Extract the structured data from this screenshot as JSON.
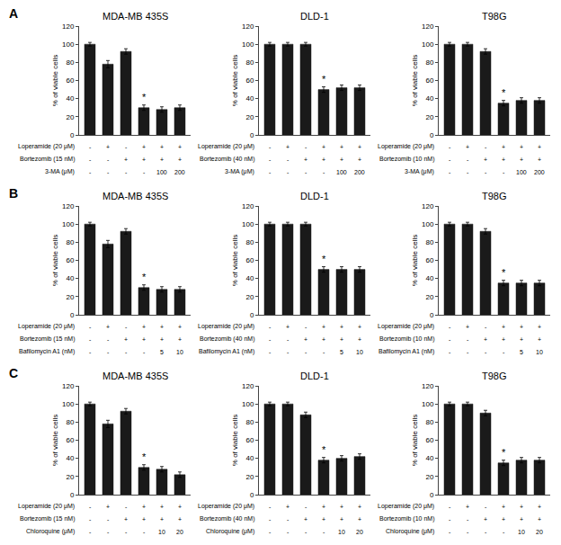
{
  "chart_data": [
    {
      "type": "bar",
      "title": "MDA-MB 435S",
      "ylabel": "% of viable cells",
      "categories": [
        null,
        null,
        null,
        null,
        null,
        null
      ],
      "values": [
        100,
        78,
        92,
        30,
        28,
        30
      ],
      "errors": [
        2,
        4,
        3,
        3,
        3,
        3
      ],
      "color": "#1a1a1a",
      "ylim": [
        0,
        120
      ],
      "yticks": [
        0,
        20,
        40,
        60,
        80,
        100,
        120
      ],
      "grid": false,
      "tick_labels": "y",
      "annotations": [
        {
          "text": "A"
        },
        {
          "text": "*",
          "x": 3
        }
      ],
      "rows": [
        {
          "label": "Loperamide (20 μM)",
          "values": [
            "-",
            "+",
            "-",
            "+",
            "+",
            "+"
          ]
        },
        {
          "label": "Bortezomib (15 nM)",
          "values": [
            "-",
            "-",
            "+",
            "+",
            "+",
            "+"
          ]
        },
        {
          "label": "3-MA (μM)",
          "values": [
            "-",
            "-",
            "-",
            "-",
            "100",
            "200"
          ]
        }
      ]
    },
    {
      "type": "bar",
      "title": "DLD-1",
      "ylabel": "% of viable cells",
      "categories": [
        null,
        null,
        null,
        null,
        null,
        null
      ],
      "values": [
        100,
        100,
        100,
        50,
        52,
        52
      ],
      "errors": [
        2,
        2,
        2,
        3,
        3,
        3
      ],
      "color": "#1a1a1a",
      "ylim": [
        0,
        120
      ],
      "yticks": [
        0,
        20,
        40,
        60,
        80,
        100,
        120
      ],
      "grid": false,
      "tick_labels": "y",
      "annotations": [
        {
          "text": "*",
          "x": 3
        }
      ],
      "rows": [
        {
          "label": "Loperamide (20 μM)",
          "values": [
            "-",
            "+",
            "-",
            "+",
            "+",
            "+"
          ]
        },
        {
          "label": "Bortezomib (40 nM)",
          "values": [
            "-",
            "-",
            "+",
            "+",
            "+",
            "+"
          ]
        },
        {
          "label": "3-MA (μM)",
          "values": [
            "-",
            "-",
            "-",
            "-",
            "100",
            "200"
          ]
        }
      ]
    },
    {
      "type": "bar",
      "title": "T98G",
      "ylabel": "% of viable cells",
      "categories": [
        null,
        null,
        null,
        null,
        null,
        null
      ],
      "values": [
        100,
        100,
        92,
        35,
        38,
        38
      ],
      "errors": [
        2,
        2,
        3,
        3,
        3,
        3
      ],
      "color": "#1a1a1a",
      "ylim": [
        0,
        120
      ],
      "yticks": [
        0,
        20,
        40,
        60,
        80,
        100,
        120
      ],
      "grid": false,
      "tick_labels": "y",
      "annotations": [
        {
          "text": "*",
          "x": 3
        }
      ],
      "rows": [
        {
          "label": "Loperamide (20 μM)",
          "values": [
            "-",
            "+",
            "-",
            "+",
            "+",
            "+"
          ]
        },
        {
          "label": "Bortezomib (10 nM)",
          "values": [
            "-",
            "-",
            "+",
            "+",
            "+",
            "+"
          ]
        },
        {
          "label": "3-MA (μM)",
          "values": [
            "-",
            "-",
            "-",
            "-",
            "100",
            "200"
          ]
        }
      ]
    },
    {
      "type": "bar",
      "title": "MDA-MB 435S",
      "ylabel": "% of viable cells",
      "categories": [
        null,
        null,
        null,
        null,
        null,
        null
      ],
      "values": [
        100,
        78,
        92,
        30,
        28,
        28
      ],
      "errors": [
        2,
        4,
        3,
        3,
        3,
        3
      ],
      "color": "#1a1a1a",
      "ylim": [
        0,
        120
      ],
      "yticks": [
        0,
        20,
        40,
        60,
        80,
        100,
        120
      ],
      "grid": false,
      "tick_labels": "y",
      "annotations": [
        {
          "text": "B"
        },
        {
          "text": "*",
          "x": 3
        }
      ],
      "rows": [
        {
          "label": "Loperamide (20 μM)",
          "values": [
            "-",
            "+",
            "-",
            "+",
            "+",
            "+"
          ]
        },
        {
          "label": "Bortezomib (15 nM)",
          "values": [
            "-",
            "-",
            "+",
            "+",
            "+",
            "+"
          ]
        },
        {
          "label": "Bafilomycin A1 (nM)",
          "values": [
            "-",
            "-",
            "-",
            "-",
            "5",
            "10"
          ]
        }
      ]
    },
    {
      "type": "bar",
      "title": "DLD-1",
      "ylabel": "% of viable cells",
      "categories": [
        null,
        null,
        null,
        null,
        null,
        null
      ],
      "values": [
        100,
        100,
        100,
        50,
        50,
        50
      ],
      "errors": [
        2,
        2,
        2,
        3,
        3,
        3
      ],
      "color": "#1a1a1a",
      "ylim": [
        0,
        120
      ],
      "yticks": [
        0,
        20,
        40,
        60,
        80,
        100,
        120
      ],
      "grid": false,
      "tick_labels": "y",
      "annotations": [
        {
          "text": "*",
          "x": 3
        }
      ],
      "rows": [
        {
          "label": "Loperamide (20 μM)",
          "values": [
            "-",
            "+",
            "-",
            "+",
            "+",
            "+"
          ]
        },
        {
          "label": "Bortezomib (40 nM)",
          "values": [
            "-",
            "-",
            "+",
            "+",
            "+",
            "+"
          ]
        },
        {
          "label": "Bafilomycin A1 (nM)",
          "values": [
            "-",
            "-",
            "-",
            "-",
            "5",
            "10"
          ]
        }
      ]
    },
    {
      "type": "bar",
      "title": "T98G",
      "ylabel": "% of viable cells",
      "categories": [
        null,
        null,
        null,
        null,
        null,
        null
      ],
      "values": [
        100,
        100,
        92,
        35,
        35,
        35
      ],
      "errors": [
        2,
        2,
        3,
        3,
        3,
        3
      ],
      "color": "#1a1a1a",
      "ylim": [
        0,
        120
      ],
      "yticks": [
        0,
        20,
        40,
        60,
        80,
        100,
        120
      ],
      "grid": false,
      "tick_labels": "y",
      "annotations": [
        {
          "text": "*",
          "x": 3
        }
      ],
      "rows": [
        {
          "label": "Loperamide (20 μM)",
          "values": [
            "-",
            "+",
            "-",
            "+",
            "+",
            "+"
          ]
        },
        {
          "label": "Bortezomib (10 nM)",
          "values": [
            "-",
            "-",
            "+",
            "+",
            "+",
            "+"
          ]
        },
        {
          "label": "Bafilomycin A1 (nM)",
          "values": [
            "-",
            "-",
            "-",
            "-",
            "5",
            "10"
          ]
        }
      ]
    },
    {
      "type": "bar",
      "title": "MDA-MB 435S",
      "ylabel": "% of viable cells",
      "categories": [
        null,
        null,
        null,
        null,
        null,
        null
      ],
      "values": [
        100,
        78,
        92,
        30,
        28,
        22
      ],
      "errors": [
        2,
        4,
        3,
        3,
        3,
        3
      ],
      "color": "#1a1a1a",
      "ylim": [
        0,
        120
      ],
      "yticks": [
        0,
        20,
        40,
        60,
        80,
        100,
        120
      ],
      "grid": false,
      "tick_labels": "y",
      "annotations": [
        {
          "text": "C"
        },
        {
          "text": "*",
          "x": 3
        }
      ],
      "rows": [
        {
          "label": "Loperamide (20 μM)",
          "values": [
            "-",
            "+",
            "-",
            "+",
            "+",
            "+"
          ]
        },
        {
          "label": "Bortezomib (15 nM)",
          "values": [
            "-",
            "-",
            "+",
            "+",
            "+",
            "+"
          ]
        },
        {
          "label": "Chloroquine (μM)",
          "values": [
            "-",
            "-",
            "-",
            "-",
            "10",
            "20"
          ]
        }
      ]
    },
    {
      "type": "bar",
      "title": "DLD-1",
      "ylabel": "% of viable cells",
      "categories": [
        null,
        null,
        null,
        null,
        null,
        null
      ],
      "values": [
        100,
        100,
        88,
        38,
        40,
        42
      ],
      "errors": [
        2,
        2,
        3,
        3,
        3,
        3
      ],
      "color": "#1a1a1a",
      "ylim": [
        0,
        120
      ],
      "yticks": [
        0,
        20,
        40,
        60,
        80,
        100,
        120
      ],
      "grid": false,
      "tick_labels": "y",
      "annotations": [
        {
          "text": "*",
          "x": 3
        }
      ],
      "rows": [
        {
          "label": "Loperamide (20 μM)",
          "values": [
            "-",
            "+",
            "-",
            "+",
            "+",
            "+"
          ]
        },
        {
          "label": "Bortezomib (40 nM)",
          "values": [
            "-",
            "-",
            "+",
            "+",
            "+",
            "+"
          ]
        },
        {
          "label": "Chloroquine (μM)",
          "values": [
            "-",
            "-",
            "-",
            "-",
            "10",
            "20"
          ]
        }
      ]
    },
    {
      "type": "bar",
      "title": "T98G",
      "ylabel": "% of viable cells",
      "categories": [
        null,
        null,
        null,
        null,
        null,
        null
      ],
      "values": [
        100,
        100,
        90,
        35,
        38,
        38
      ],
      "errors": [
        2,
        2,
        3,
        3,
        3,
        3
      ],
      "color": "#1a1a1a",
      "ylim": [
        0,
        120
      ],
      "yticks": [
        0,
        20,
        40,
        60,
        80,
        100,
        120
      ],
      "grid": false,
      "tick_labels": "y",
      "annotations": [
        {
          "text": "*",
          "x": 3
        }
      ],
      "rows": [
        {
          "label": "Loperamide (20 μM)",
          "values": [
            "-",
            "+",
            "-",
            "+",
            "+",
            "+"
          ]
        },
        {
          "label": "Bortezomib (10 nM)",
          "values": [
            "-",
            "-",
            "+",
            "+",
            "+",
            "+"
          ]
        },
        {
          "label": "Chloroquine (μM)",
          "values": [
            "-",
            "-",
            "-",
            "-",
            "10",
            "20"
          ]
        }
      ]
    }
  ]
}
